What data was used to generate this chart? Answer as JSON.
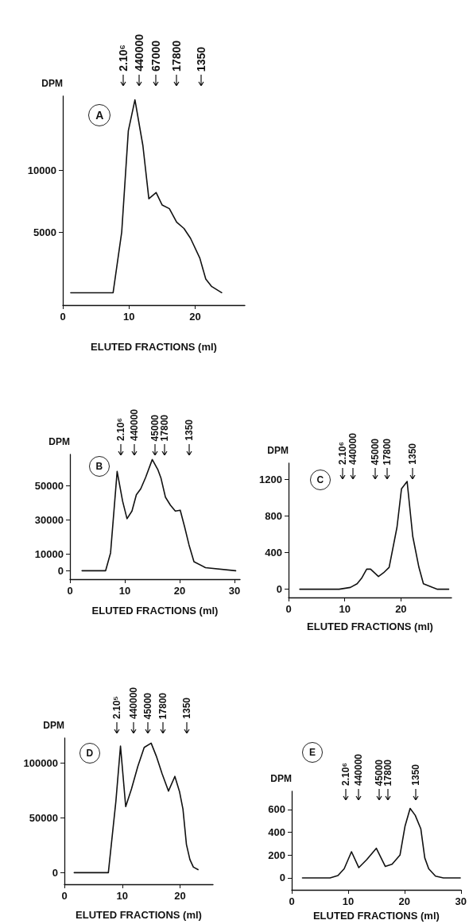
{
  "chart_data": [
    {
      "type": "line",
      "xlabel": "ELUTED FRACTIONS (ml)",
      "ylabel": "DPM",
      "marker": "none",
      "x": [
        1.2,
        7.6,
        8.9,
        9.9,
        10.9,
        12.1,
        13.0,
        14.1,
        15.0,
        16.1,
        17.2,
        18.3,
        19.3,
        20.7,
        21.6,
        22.5,
        24.0
      ],
      "series": [
        {
          "color": "#111111",
          "values": [
            100,
            100,
            5000,
            13200,
            15700,
            12000,
            7700,
            8200,
            7200,
            6900,
            5800,
            5300,
            4500,
            2900,
            1200,
            600,
            100
          ]
        }
      ],
      "xlim": [
        0,
        27.5
      ],
      "xticks": [
        0,
        10,
        20
      ],
      "ylim": [
        -900,
        16000
      ],
      "yticks": [
        5000,
        10000
      ],
      "annotations": [
        "A",
        "2.10⁶",
        "440000",
        "67000",
        "17800",
        "1350"
      ]
    },
    {
      "type": "line",
      "xlabel": "ELUTED FRACTIONS (ml)",
      "ylabel": "DPM",
      "marker": "none",
      "x": [
        2.2,
        6.5,
        7.4,
        8.6,
        9.6,
        10.4,
        11.3,
        12.1,
        12.9,
        13.8,
        15.0,
        16.0,
        16.6,
        17.4,
        18.3,
        19.2,
        20.1,
        20.9,
        21.7,
        22.6,
        24.7,
        30.2
      ],
      "series": [
        {
          "color": "#111111",
          "values": [
            0,
            0,
            10500,
            58600,
            41000,
            30700,
            35200,
            44800,
            48300,
            55100,
            65600,
            59800,
            54500,
            43400,
            38700,
            35200,
            35700,
            25800,
            15200,
            5300,
            1800,
            0
          ]
        }
      ],
      "xlim": [
        0,
        31
      ],
      "xticks": [
        0,
        10,
        20,
        30
      ],
      "ylim": [
        -5000,
        68600
      ],
      "yticks": [
        0,
        10000,
        30000,
        50000
      ],
      "annotations": [
        "B",
        "2.10⁶",
        "440000",
        "45000",
        "17800",
        "1350"
      ]
    },
    {
      "type": "line",
      "xlabel": "ELUTED FRACTIONS (ml)",
      "ylabel": "DPM",
      "marker": "none",
      "x": [
        2.0,
        9.0,
        11.0,
        12.2,
        13.0,
        13.9,
        14.6,
        16.0,
        16.9,
        17.9,
        19.3,
        20.1,
        21.1,
        22.1,
        23.2,
        24.0,
        24.8,
        25.6,
        26.5,
        28.5
      ],
      "series": [
        {
          "color": "#111111",
          "values": [
            0,
            0,
            20,
            60,
            120,
            220,
            220,
            140,
            180,
            240,
            680,
            1100,
            1180,
            580,
            240,
            60,
            40,
            20,
            0,
            0
          ]
        }
      ],
      "xlim": [
        0,
        29
      ],
      "xticks": [
        0,
        10,
        20
      ],
      "ylim": [
        -90,
        1380
      ],
      "yticks": [
        0,
        400,
        800,
        1200
      ],
      "annotations": [
        "C",
        "2.10⁶",
        "440000",
        "45000",
        "17800",
        "1350"
      ]
    },
    {
      "type": "line",
      "xlabel": "ELUTED FRACTIONS (ml)",
      "ylabel": "DPM",
      "marker": "none",
      "x": [
        1.7,
        7.6,
        8.9,
        9.7,
        10.6,
        11.6,
        12.7,
        13.8,
        15.0,
        15.9,
        16.9,
        18.0,
        19.1,
        19.9,
        20.5,
        21.1,
        21.7,
        22.3,
        23.1
      ],
      "series": [
        {
          "color": "#111111",
          "values": [
            0,
            0,
            65000,
            115700,
            60400,
            76500,
            97200,
            114500,
            118400,
            106400,
            90300,
            74600,
            88000,
            74200,
            58100,
            25800,
            12000,
            5100,
            2800
          ]
        }
      ],
      "xlim": [
        0,
        25.7
      ],
      "xticks": [
        0,
        10,
        20
      ],
      "ylim": [
        -10600,
        123000
      ],
      "yticks": [
        0,
        50000,
        100000
      ],
      "annotations": [
        "D",
        "2.10⁵",
        "440000",
        "45000",
        "17800",
        "1350"
      ]
    },
    {
      "type": "line",
      "xlabel": "ELUTED FRACTIONS (ml)",
      "ylabel": "DPM",
      "marker": "none",
      "x": [
        1.9,
        6.8,
        8.2,
        9.3,
        10.6,
        11.9,
        13.3,
        15.0,
        16.6,
        17.8,
        19.2,
        20.1,
        21.0,
        21.9,
        22.9,
        23.6,
        24.3,
        25.5,
        26.9,
        29.9
      ],
      "series": [
        {
          "color": "#111111",
          "values": [
            0,
            0,
            20,
            80,
            230,
            90,
            160,
            260,
            100,
            120,
            200,
            455,
            610,
            550,
            430,
            175,
            80,
            15,
            0,
            0
          ]
        }
      ],
      "xlim": [
        0,
        30
      ],
      "xticks": [
        0,
        10,
        20,
        30
      ],
      "ylim": [
        -105,
        760
      ],
      "yticks": [
        0,
        200,
        400,
        600
      ],
      "annotations": [
        "E",
        "2.10⁶",
        "440000",
        "45000",
        "17800",
        "1350"
      ]
    }
  ]
}
